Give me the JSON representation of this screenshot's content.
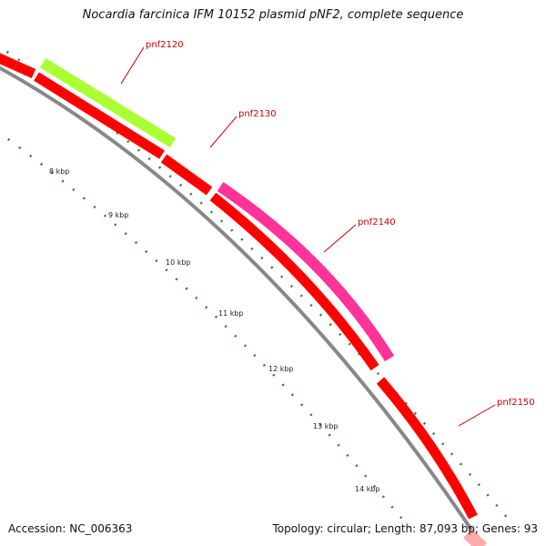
{
  "title": "Nocardia farcinica IFM 10152 plasmid pNF2, complete sequence",
  "footer": {
    "accession_label": "Accession:",
    "accession": "NC_006363",
    "topology_label": "Topology:",
    "topology": "circular",
    "length_label": "Length:",
    "length": "87,093 bp",
    "genes_label": "Genes:",
    "genes": "93"
  },
  "colors": {
    "backbone": "#888888",
    "forward_track": "#ff0000",
    "green_gene": "#aaff33",
    "magenta_gene": "#ff3399",
    "tick": "#2d7a2d",
    "gene_label": "#cc0000",
    "pink_gene": "#ffaaaa"
  },
  "ticks": [
    {
      "label": "8 kbp"
    },
    {
      "label": "9 kbp"
    },
    {
      "label": "10 kbp"
    },
    {
      "label": "11 kbp"
    },
    {
      "label": "12 kbp"
    },
    {
      "label": "13 kbp"
    },
    {
      "label": "14 kbp"
    }
  ],
  "gene_labels": [
    {
      "text": "pnf2120"
    },
    {
      "text": "pnf2130"
    },
    {
      "text": "pnf2140"
    },
    {
      "text": "pnf2150"
    }
  ]
}
